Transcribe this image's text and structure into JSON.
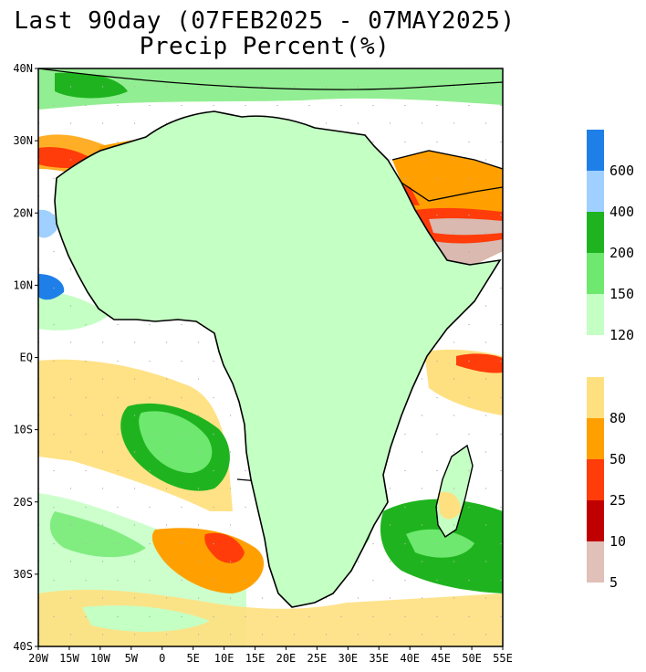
{
  "title_line1": "Last 90day (07FEB2025 - 07MAY2025)",
  "title_line2": "Precip Percent(%)",
  "lat_ticks": [
    "40N",
    "30N",
    "20N",
    "10N",
    "EQ",
    "10S",
    "20S",
    "30S",
    "40S"
  ],
  "lon_ticks": [
    "20W",
    "15W",
    "10W",
    "5W",
    "0",
    "5E",
    "10E",
    "15E",
    "20E",
    "25E",
    "30E",
    "35E",
    "40E",
    "45E",
    "50E",
    "55E"
  ],
  "legend_wet": {
    "colors": [
      "#1f7fe8",
      "#9fd0ff",
      "#1fb41f",
      "#6ee86e",
      "#c4ffc4"
    ],
    "labels": [
      "600",
      "400",
      "200",
      "150",
      "120"
    ]
  },
  "legend_dry": {
    "colors": [
      "#ffe080",
      "#ffa000",
      "#ff3c0a",
      "#c00000",
      "#e0c0b8"
    ],
    "labels": [
      "80",
      "50",
      "25",
      "10",
      "5"
    ]
  },
  "colors": {
    "coast": "#000000",
    "borders": "#a0a0a0",
    "dry_very": "#d9b9b0",
    "dry_10": "#c00000",
    "dry_25": "#ff3c0a",
    "dry_50": "#ffa000",
    "dry_80": "#ffe080",
    "wet_120": "#c4ffc4",
    "wet_150": "#6ee86e",
    "wet_200": "#1fb41f",
    "wet_400": "#9fd0ff",
    "wet_600": "#1f7fe8"
  }
}
